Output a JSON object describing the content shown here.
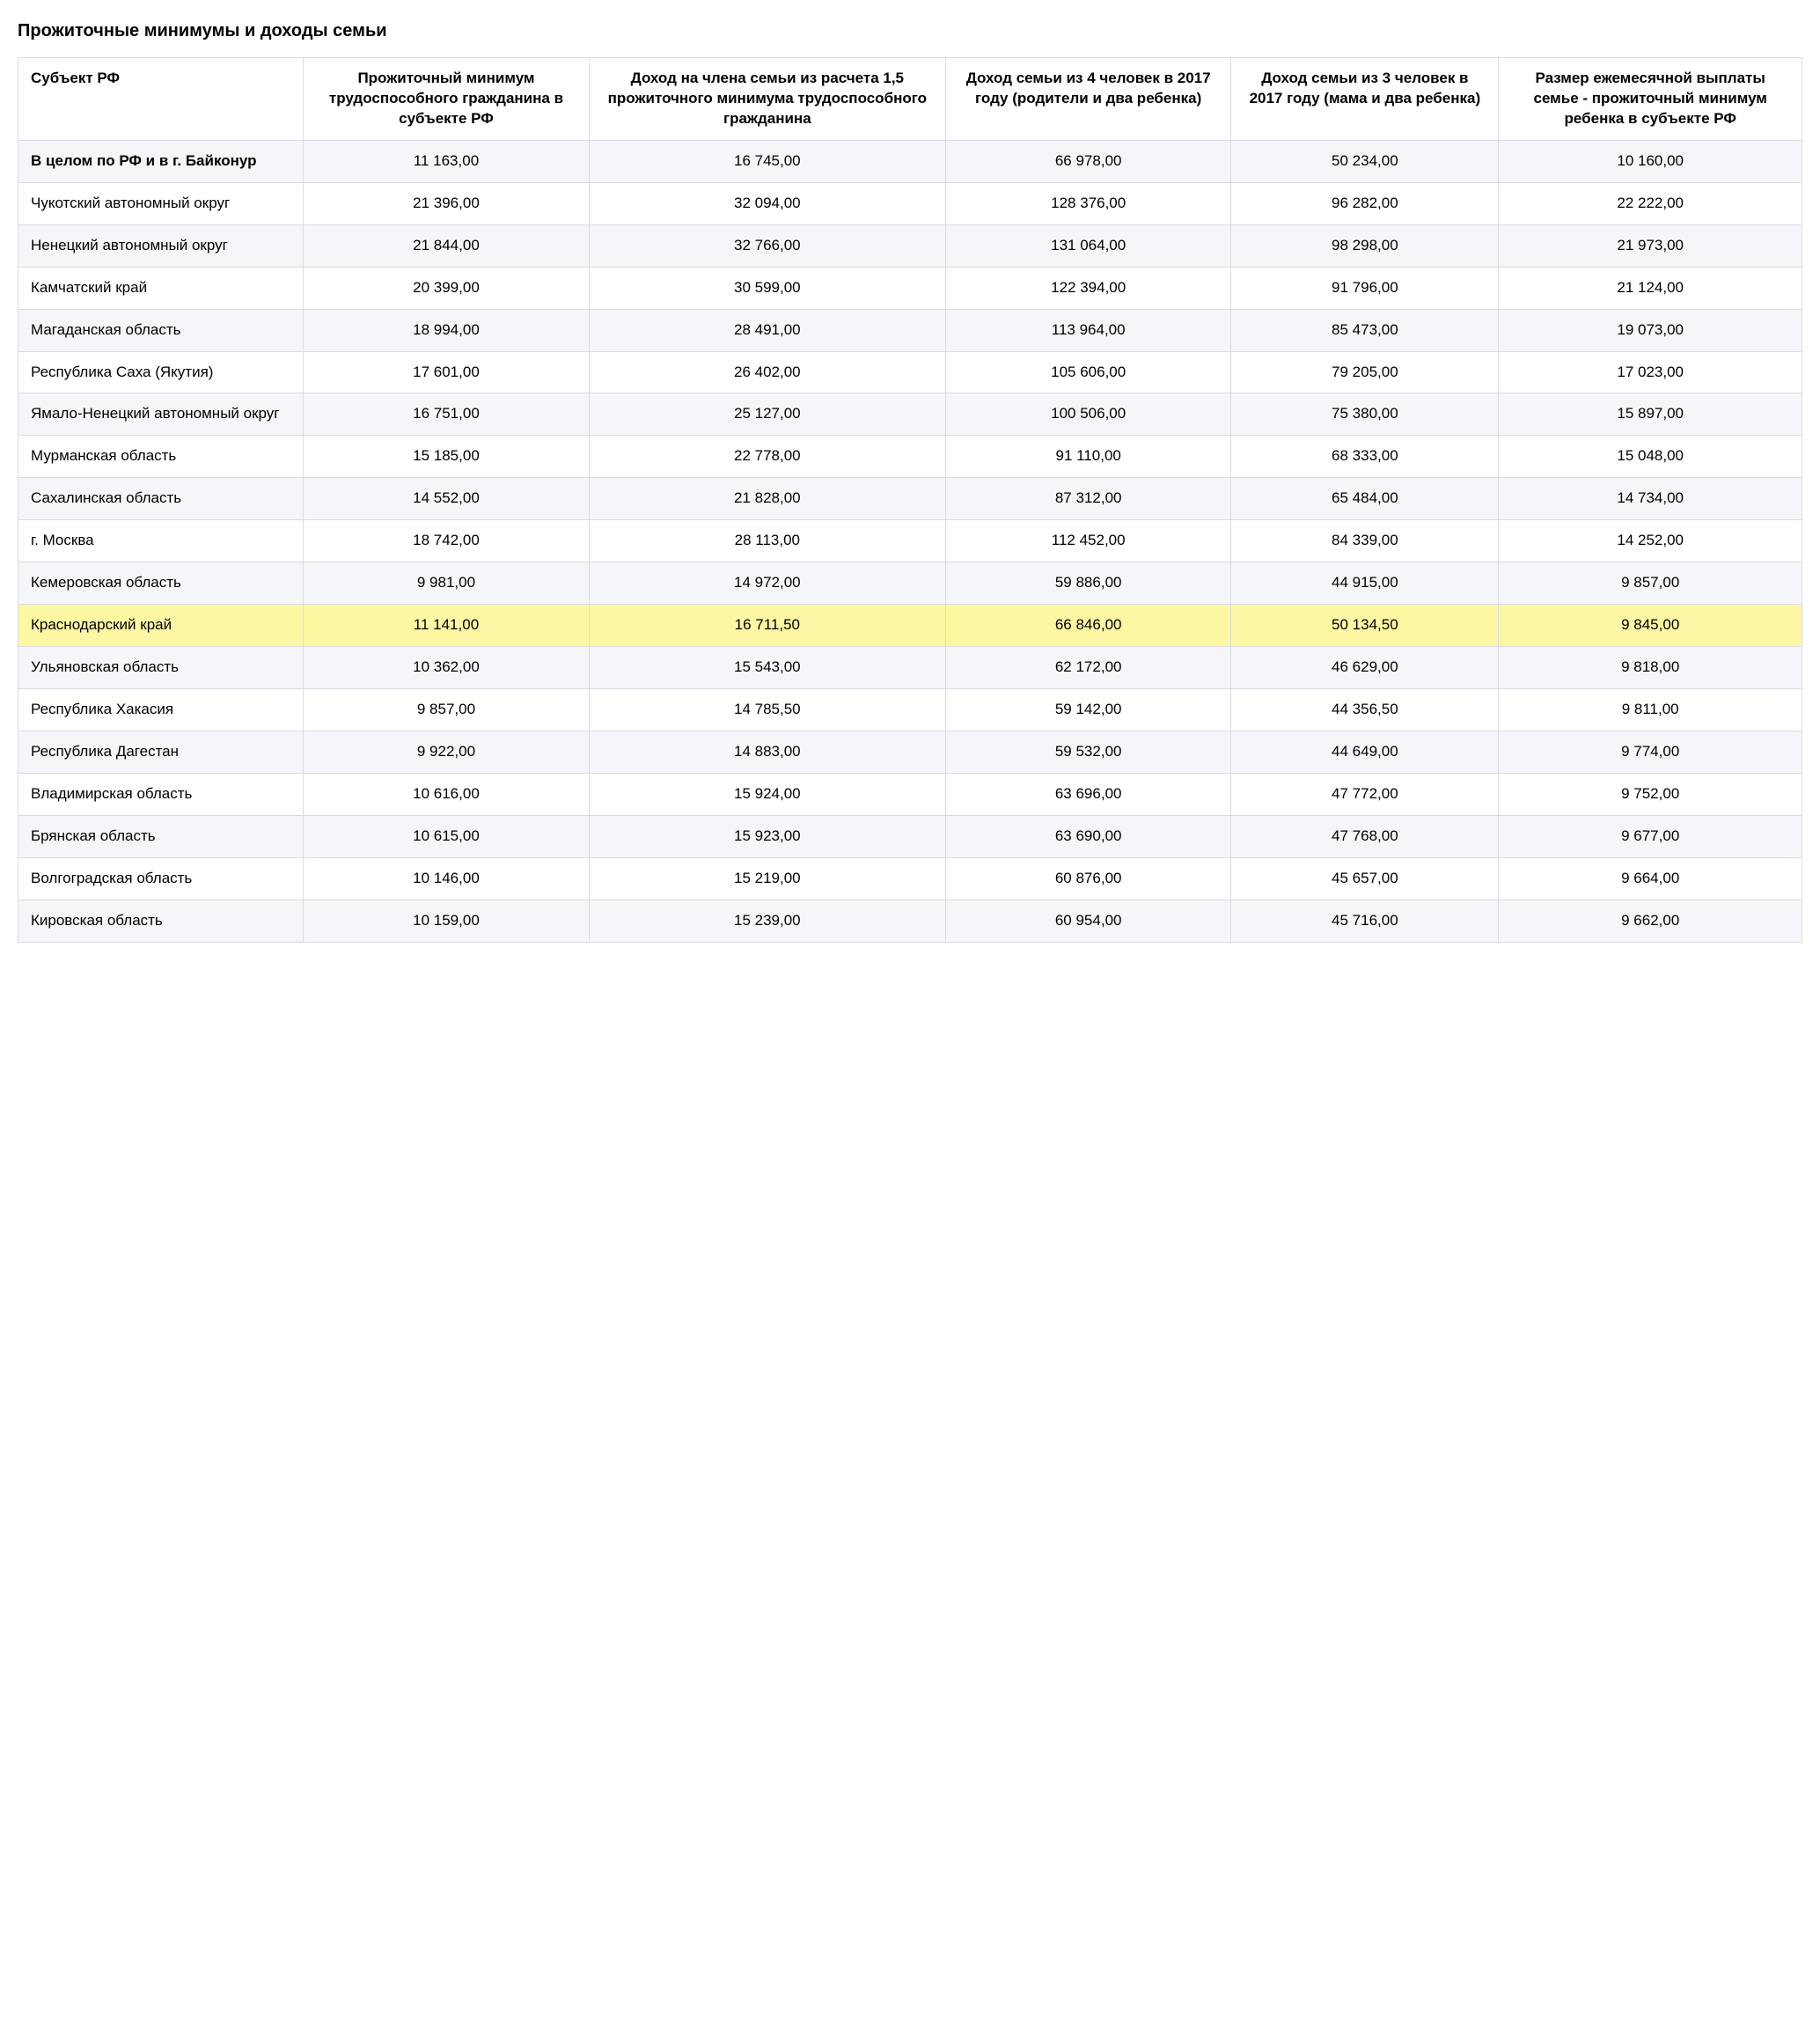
{
  "title": "Прожиточные минимумы и доходы семьи",
  "table": {
    "highlight_row_index": 11,
    "highlight_color": "#fdf6a3",
    "header_bg": "#ffffff",
    "odd_row_bg": "#f4f6f9",
    "even_row_bg": "#ffffff",
    "border_color": "#d9dde3",
    "font_size_pt": 13,
    "column_widths_pct": [
      16,
      16,
      20,
      16,
      15,
      17
    ],
    "columns": [
      "Субъект РФ",
      "Прожиточный минимум трудоспособного гражданина в субъекте РФ",
      "Доход на члена семьи из расчета 1,5 прожиточного минимума трудоспособного гражданина",
      "Доход семьи из 4 человек в 2017 году (родители и два ребенка)",
      "Доход семьи из 3 человек в 2017 году (мама и два ребенка)",
      "Размер ежемесячной выплаты семье - прожиточный минимум ребенка в субъекте РФ"
    ],
    "rows": [
      [
        "В целом по РФ и в г. Байконур",
        "11 163,00",
        "16 745,00",
        "66 978,00",
        "50 234,00",
        "10 160,00"
      ],
      [
        "Чукотский автономный округ",
        "21 396,00",
        "32 094,00",
        "128 376,00",
        "96 282,00",
        "22 222,00"
      ],
      [
        "Ненецкий автономный округ",
        "21 844,00",
        "32 766,00",
        "131 064,00",
        "98 298,00",
        "21 973,00"
      ],
      [
        "Камчатский край",
        "20 399,00",
        "30 599,00",
        "122 394,00",
        "91 796,00",
        "21 124,00"
      ],
      [
        "Магаданская область",
        "18 994,00",
        "28 491,00",
        "113 964,00",
        "85 473,00",
        "19 073,00"
      ],
      [
        "Республика Саха (Якутия)",
        "17 601,00",
        "26 402,00",
        "105 606,00",
        "79 205,00",
        "17 023,00"
      ],
      [
        "Ямало-Ненецкий автономный округ",
        "16 751,00",
        "25 127,00",
        "100 506,00",
        "75 380,00",
        "15 897,00"
      ],
      [
        "Мурманская область",
        "15 185,00",
        "22 778,00",
        "91 110,00",
        "68 333,00",
        "15 048,00"
      ],
      [
        "Сахалинская область",
        "14 552,00",
        "21 828,00",
        "87 312,00",
        "65 484,00",
        "14 734,00"
      ],
      [
        "г. Москва",
        "18 742,00",
        "28 113,00",
        "112 452,00",
        "84 339,00",
        "14 252,00"
      ],
      [
        "Кемеровская область",
        "9 981,00",
        "14 972,00",
        "59 886,00",
        "44 915,00",
        "9 857,00"
      ],
      [
        "Краснодарский край",
        "11 141,00",
        "16 711,50",
        "66 846,00",
        "50 134,50",
        "9 845,00"
      ],
      [
        "Ульяновская область",
        "10 362,00",
        "15 543,00",
        "62 172,00",
        "46 629,00",
        "9 818,00"
      ],
      [
        "Республика Хакасия",
        "9 857,00",
        "14 785,50",
        "59 142,00",
        "44 356,50",
        "9 811,00"
      ],
      [
        "Республика Дагестан",
        "9 922,00",
        "14 883,00",
        "59 532,00",
        "44 649,00",
        "9 774,00"
      ],
      [
        "Владимирская область",
        "10 616,00",
        "15 924,00",
        "63 696,00",
        "47 772,00",
        "9 752,00"
      ],
      [
        "Брянская область",
        "10 615,00",
        "15 923,00",
        "63 690,00",
        "47 768,00",
        "9 677,00"
      ],
      [
        "Волгоградская область",
        "10 146,00",
        "15 219,00",
        "60 876,00",
        "45 657,00",
        "9 664,00"
      ],
      [
        "Кировская область",
        "10 159,00",
        "15 239,00",
        "60 954,00",
        "45 716,00",
        "9 662,00"
      ]
    ]
  }
}
